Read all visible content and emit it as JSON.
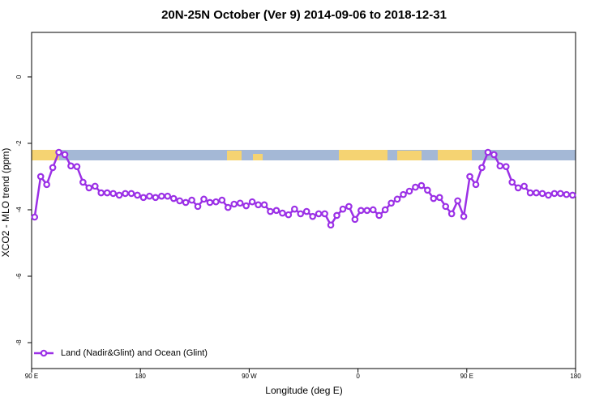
{
  "chart_data": {
    "type": "line",
    "title": "20N-25N October (Ver 9)   2014-09-06 to 2018-12-31",
    "x_label": "Longitude (deg E)",
    "y_label": "XCO2 - MLO trend (ppm)",
    "xlim": [
      90,
      540
    ],
    "xticks": [
      {
        "value": 90,
        "label": "90 E"
      },
      180,
      {
        "value": 270,
        "label": "90 W"
      },
      {
        "value": 360,
        "label": "0"
      },
      {
        "value": 450,
        "label": "90 E"
      },
      {
        "value": 540,
        "label": "180"
      }
    ],
    "ylim": [
      -8.78,
      1.34
    ],
    "yticks": [
      0,
      -2,
      -4,
      -6,
      -8
    ],
    "legend": "bottom-left",
    "x": [
      92.5,
      97.5,
      102.5,
      107.5,
      112.5,
      117.5,
      122.5,
      127.5,
      132.5,
      137.5,
      142.5,
      147.5,
      152.5,
      157.5,
      162.5,
      167.5,
      172.5,
      177.5,
      182.5,
      187.5,
      192.5,
      197.5,
      202.5,
      207.5,
      212.5,
      217.5,
      222.5,
      227.5,
      232.5,
      237.5,
      242.5,
      247.5,
      252.5,
      257.5,
      262.5,
      267.5,
      272.5,
      277.5,
      282.5,
      287.5,
      292.5,
      297.5,
      302.5,
      307.5,
      312.5,
      317.5,
      322.5,
      327.5,
      332.5,
      337.5,
      342.5,
      347.5,
      352.5,
      357.5,
      362.5,
      367.5,
      372.5,
      377.5,
      382.5,
      387.5,
      392.5,
      397.5,
      402.5,
      407.5,
      412.5,
      417.5,
      422.5,
      427.5,
      432.5,
      437.5,
      442.5,
      447.5,
      452.5,
      457.5,
      462.5,
      467.5,
      472.5,
      477.5,
      482.5,
      487.5,
      492.5,
      497.5,
      502.5,
      507.5,
      512.5,
      517.5,
      522.5,
      527.5,
      532.5,
      537.5
    ],
    "series": [
      {
        "name": "Land (Nadir&Glint) and Ocean (Glint)",
        "color": "#9b30e6",
        "values": [
          -4.22,
          -3.0,
          -3.24,
          -2.73,
          -2.27,
          -2.34,
          -2.68,
          -2.7,
          -3.17,
          -3.34,
          -3.29,
          -3.49,
          -3.49,
          -3.51,
          -3.56,
          -3.51,
          -3.51,
          -3.56,
          -3.63,
          -3.59,
          -3.63,
          -3.59,
          -3.59,
          -3.66,
          -3.73,
          -3.78,
          -3.71,
          -3.9,
          -3.68,
          -3.78,
          -3.76,
          -3.71,
          -3.93,
          -3.83,
          -3.8,
          -3.88,
          -3.76,
          -3.85,
          -3.85,
          -4.05,
          -4.02,
          -4.1,
          -4.15,
          -3.98,
          -4.12,
          -4.05,
          -4.2,
          -4.12,
          -4.12,
          -4.46,
          -4.17,
          -3.98,
          -3.9,
          -4.29,
          -4.02,
          -4.02,
          -4.0,
          -4.17,
          -4.0,
          -3.8,
          -3.68,
          -3.54,
          -3.44,
          -3.32,
          -3.27,
          -3.41,
          -3.66,
          -3.63,
          -3.9,
          -4.12,
          -3.73,
          -4.2,
          -3.0,
          -3.24,
          -2.73,
          -2.27,
          -2.34,
          -2.68,
          -2.7,
          -3.17,
          -3.34,
          -3.29,
          -3.49,
          -3.49,
          -3.51,
          -3.56,
          -3.51,
          -3.51,
          -3.54,
          -3.56
        ]
      }
    ]
  }
}
